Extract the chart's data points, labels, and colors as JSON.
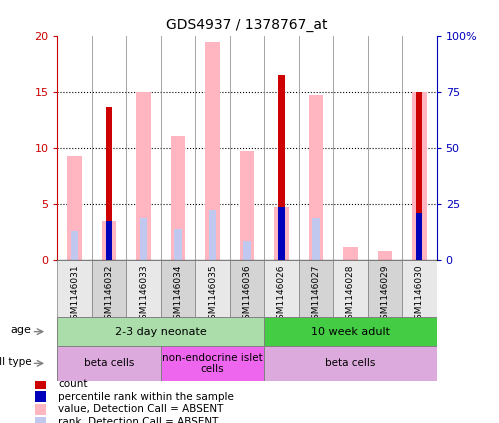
{
  "title": "GDS4937 / 1378767_at",
  "samples": [
    "GSM1146031",
    "GSM1146032",
    "GSM1146033",
    "GSM1146034",
    "GSM1146035",
    "GSM1146036",
    "GSM1146026",
    "GSM1146027",
    "GSM1146028",
    "GSM1146029",
    "GSM1146030"
  ],
  "count_values": [
    0,
    13.7,
    0,
    0,
    0,
    0,
    16.5,
    0,
    0,
    0,
    15.0
  ],
  "rank_values": [
    0,
    3.5,
    0,
    0,
    0,
    0,
    4.7,
    0,
    0,
    0,
    4.2
  ],
  "absent_value_values": [
    9.3,
    3.5,
    15.0,
    11.1,
    19.5,
    9.7,
    4.7,
    14.7,
    1.2,
    0.85,
    15.0
  ],
  "absent_rank_values": [
    2.6,
    0,
    3.8,
    2.8,
    4.5,
    1.7,
    0,
    3.8,
    0,
    0,
    0
  ],
  "ylim": [
    0,
    20
  ],
  "y2lim": [
    0,
    100
  ],
  "yticks_left": [
    0,
    5,
    10,
    15,
    20
  ],
  "ytick_labels_left": [
    "0",
    "5",
    "10",
    "15",
    "20"
  ],
  "ytick_labels_right": [
    "0",
    "25",
    "50",
    "75",
    "100%"
  ],
  "age_groups": [
    {
      "label": "2-3 day neonate",
      "start": 0,
      "end": 6,
      "color": "#aaddaa"
    },
    {
      "label": "10 week adult",
      "start": 6,
      "end": 11,
      "color": "#44cc44"
    }
  ],
  "cell_type_groups": [
    {
      "label": "beta cells",
      "start": 0,
      "end": 3,
      "color": "#ddaadd"
    },
    {
      "label": "non-endocrine islet\ncells",
      "start": 3,
      "end": 6,
      "color": "#ee66ee"
    },
    {
      "label": "beta cells",
      "start": 6,
      "end": 11,
      "color": "#ddaadd"
    }
  ],
  "color_count": "#cc0000",
  "color_rank": "#0000bb",
  "color_absent_value": "#ffb6c1",
  "color_absent_rank": "#c0c8f0",
  "legend_items": [
    {
      "color": "#cc0000",
      "label": "count"
    },
    {
      "color": "#0000bb",
      "label": "percentile rank within the sample"
    },
    {
      "color": "#ffb6c1",
      "label": "value, Detection Call = ABSENT"
    },
    {
      "color": "#c0c8f0",
      "label": "rank, Detection Call = ABSENT"
    }
  ]
}
